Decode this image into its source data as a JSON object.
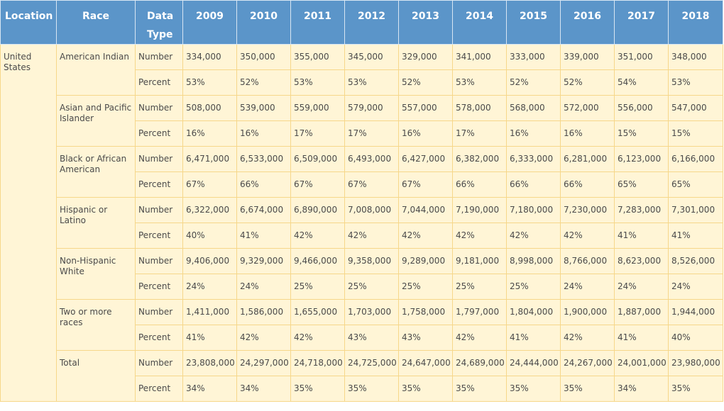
{
  "headers": {
    "location": "Location",
    "race": "Race",
    "data_type": "Data Type",
    "years": [
      "2009",
      "2010",
      "2011",
      "2012",
      "2013",
      "2014",
      "2015",
      "2016",
      "2017",
      "2018"
    ]
  },
  "location": "United States",
  "groups": [
    {
      "race": "American Indian",
      "number": [
        "334,000",
        "350,000",
        "355,000",
        "345,000",
        "329,000",
        "341,000",
        "333,000",
        "339,000",
        "351,000",
        "348,000"
      ],
      "percent": [
        "53%",
        "52%",
        "53%",
        "53%",
        "52%",
        "53%",
        "52%",
        "52%",
        "54%",
        "53%"
      ]
    },
    {
      "race": "Asian and Pacific Islander",
      "number": [
        "508,000",
        "539,000",
        "559,000",
        "579,000",
        "557,000",
        "578,000",
        "568,000",
        "572,000",
        "556,000",
        "547,000"
      ],
      "percent": [
        "16%",
        "16%",
        "17%",
        "17%",
        "16%",
        "17%",
        "16%",
        "16%",
        "15%",
        "15%"
      ]
    },
    {
      "race": "Black or African American",
      "number": [
        "6,471,000",
        "6,533,000",
        "6,509,000",
        "6,493,000",
        "6,427,000",
        "6,382,000",
        "6,333,000",
        "6,281,000",
        "6,123,000",
        "6,166,000"
      ],
      "percent": [
        "67%",
        "66%",
        "67%",
        "67%",
        "67%",
        "66%",
        "66%",
        "66%",
        "65%",
        "65%"
      ]
    },
    {
      "race": "Hispanic or Latino",
      "number": [
        "6,322,000",
        "6,674,000",
        "6,890,000",
        "7,008,000",
        "7,044,000",
        "7,190,000",
        "7,180,000",
        "7,230,000",
        "7,283,000",
        "7,301,000"
      ],
      "percent": [
        "40%",
        "41%",
        "42%",
        "42%",
        "42%",
        "42%",
        "42%",
        "42%",
        "41%",
        "41%"
      ]
    },
    {
      "race": "Non-Hispanic White",
      "number": [
        "9,406,000",
        "9,329,000",
        "9,466,000",
        "9,358,000",
        "9,289,000",
        "9,181,000",
        "8,998,000",
        "8,766,000",
        "8,623,000",
        "8,526,000"
      ],
      "percent": [
        "24%",
        "24%",
        "25%",
        "25%",
        "25%",
        "25%",
        "25%",
        "24%",
        "24%",
        "24%"
      ]
    },
    {
      "race": "Two or more races",
      "number": [
        "1,411,000",
        "1,586,000",
        "1,655,000",
        "1,703,000",
        "1,758,000",
        "1,797,000",
        "1,804,000",
        "1,900,000",
        "1,887,000",
        "1,944,000"
      ],
      "percent": [
        "41%",
        "42%",
        "42%",
        "43%",
        "43%",
        "42%",
        "41%",
        "42%",
        "41%",
        "40%"
      ]
    },
    {
      "race": "Total",
      "number": [
        "23,808,000",
        "24,297,000",
        "24,718,000",
        "24,725,000",
        "24,647,000",
        "24,689,000",
        "24,444,000",
        "24,267,000",
        "24,001,000",
        "23,980,000"
      ],
      "percent": [
        "34%",
        "34%",
        "35%",
        "35%",
        "35%",
        "35%",
        "35%",
        "35%",
        "34%",
        "35%"
      ]
    }
  ],
  "labels": {
    "number": "Number",
    "percent": "Percent"
  },
  "colors": {
    "header_bg": "#5b95c9",
    "cell_bg": "#fff5d6",
    "cell_border": "#f6d78a"
  }
}
